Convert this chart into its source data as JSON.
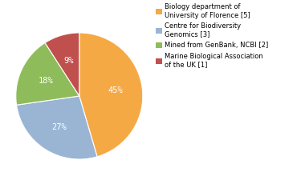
{
  "labels": [
    "Biology department of\nUniversity of Florence [5]",
    "Centre for Biodiversity\nGenomics [3]",
    "Mined from GenBank, NCBI [2]",
    "Marine Biological Association\nof the UK [1]"
  ],
  "values": [
    45,
    27,
    18,
    9
  ],
  "colors": [
    "#f5a945",
    "#9ab5d4",
    "#8fbc5a",
    "#c0504d"
  ],
  "pct_labels": [
    "45%",
    "27%",
    "18%",
    "9%"
  ],
  "background_color": "#ffffff",
  "startangle": 90,
  "counterclock": false
}
